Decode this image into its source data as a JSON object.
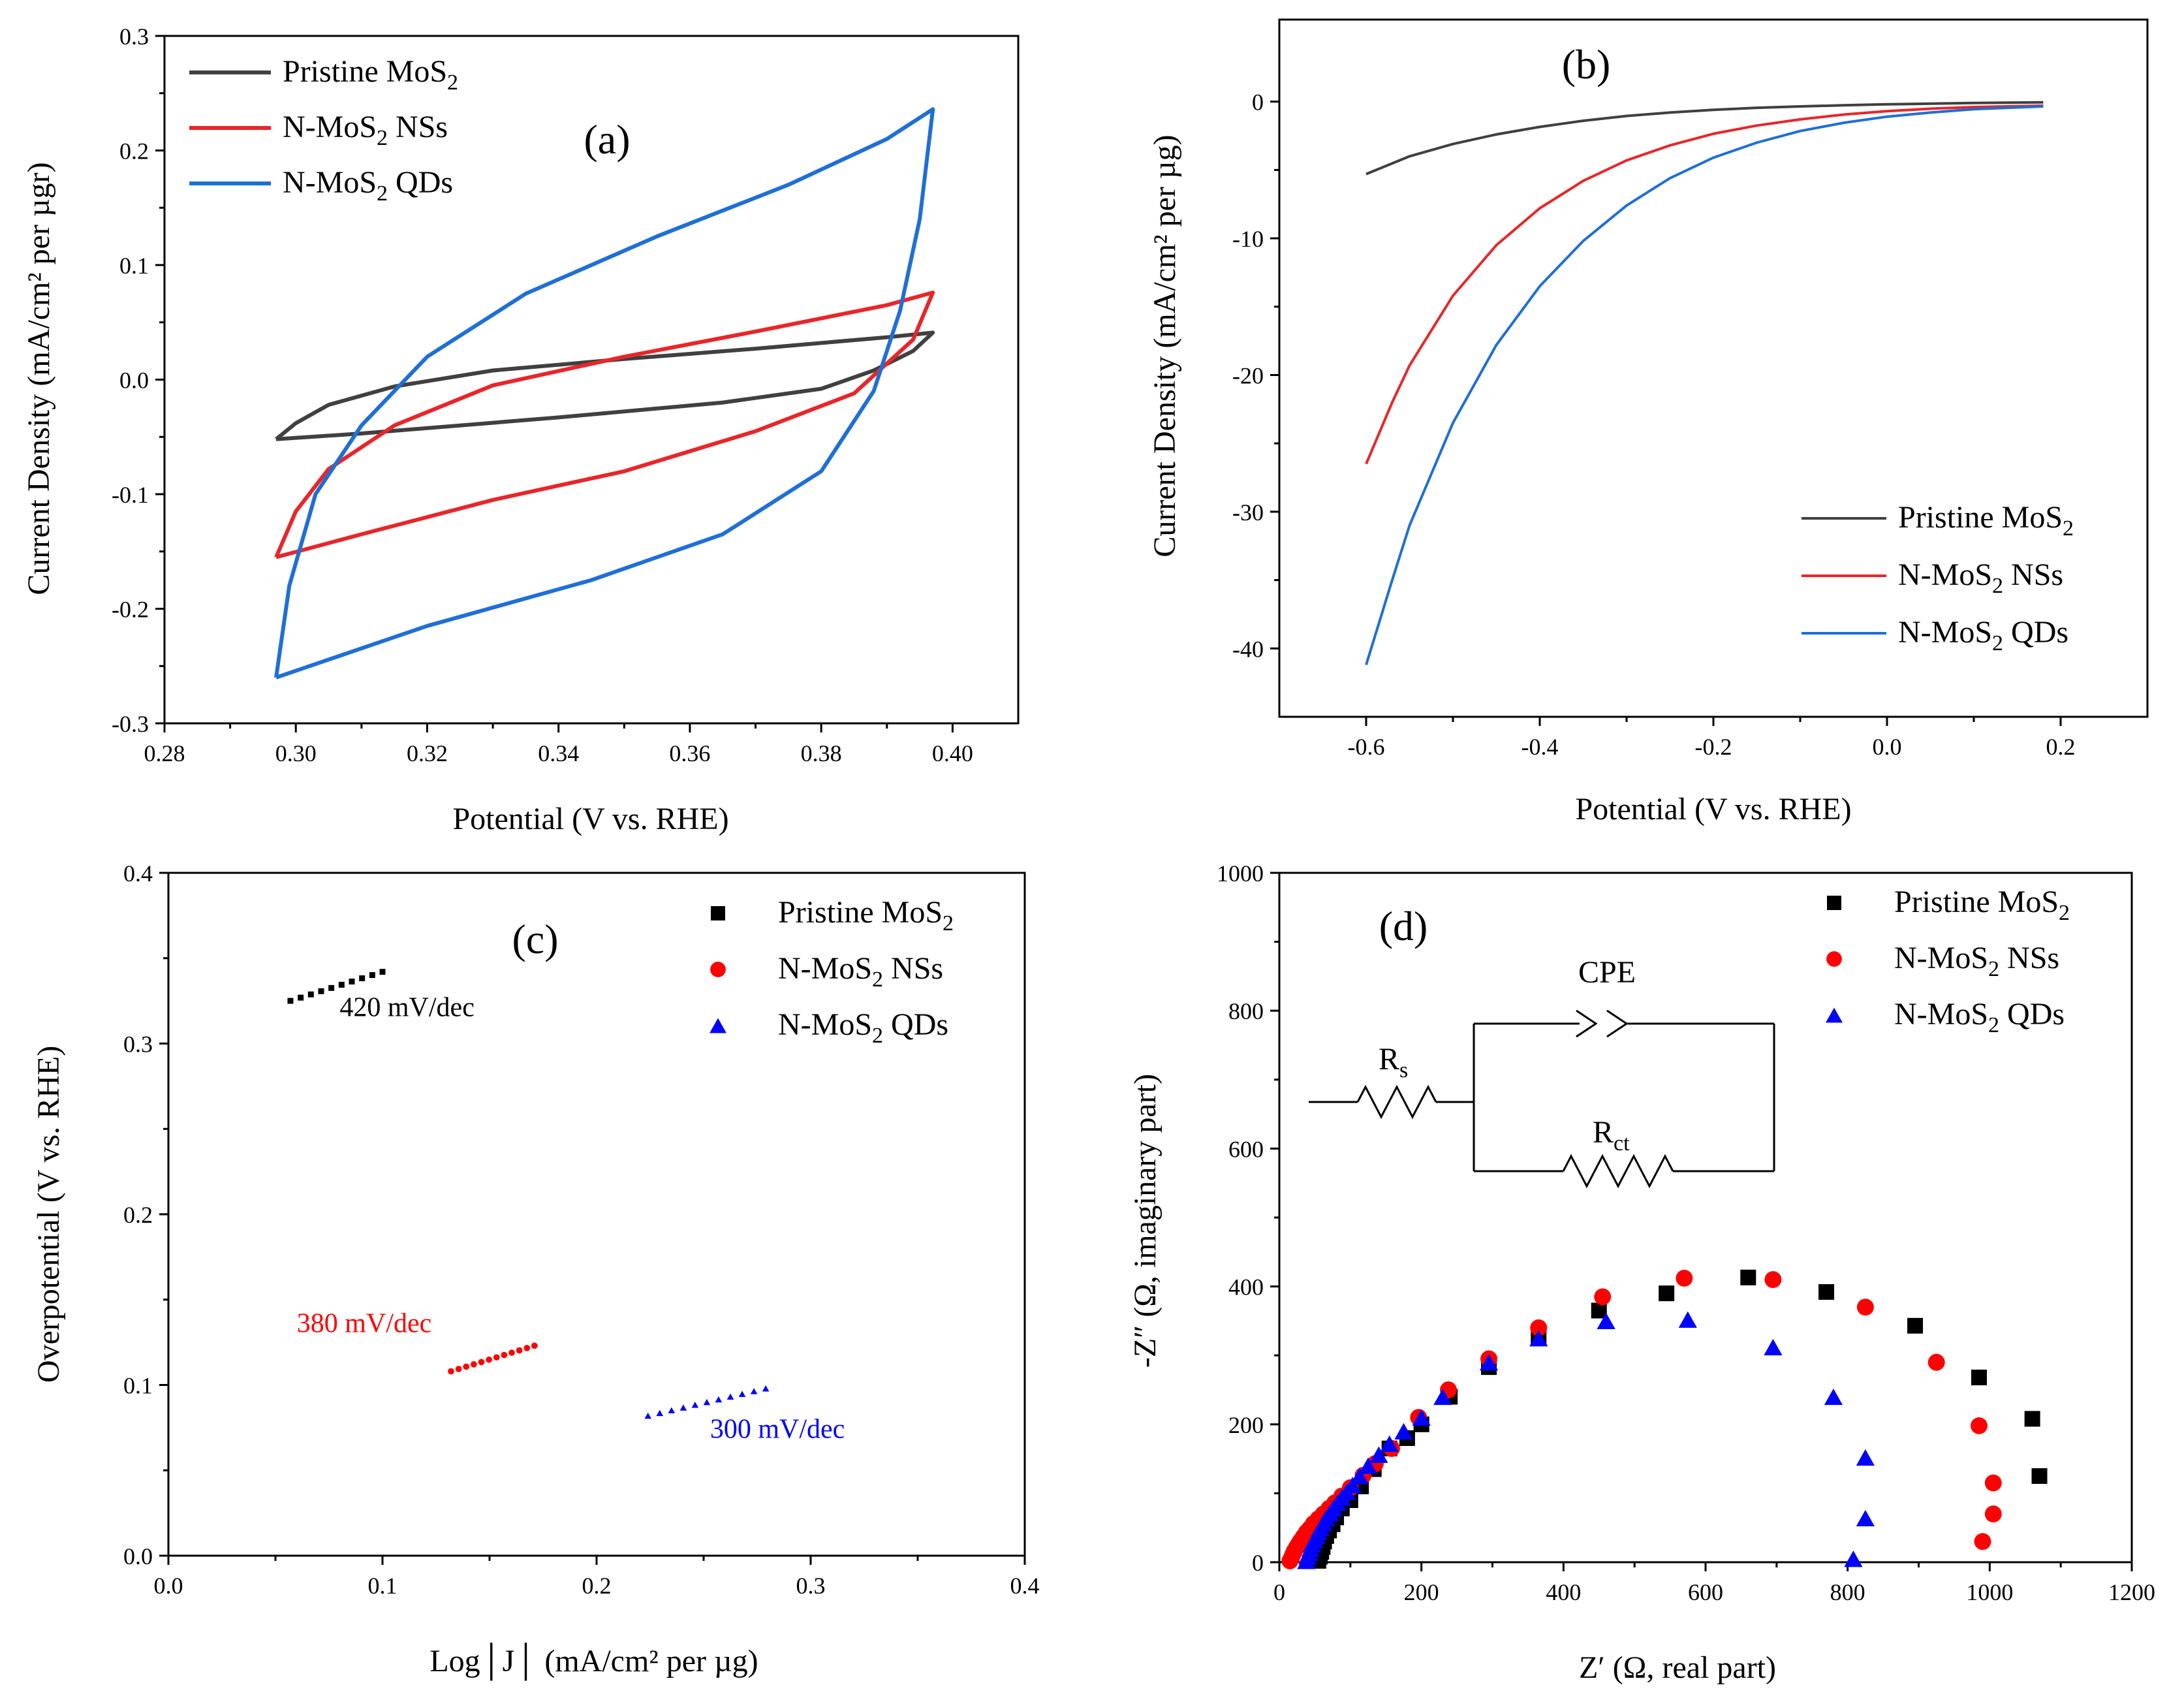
{
  "colors": {
    "pristine": "#404040",
    "nss": "#e8262a",
    "qds": "#1f6fd6",
    "black": "#000000",
    "red": "#ff0000",
    "blue": "#0000ff"
  },
  "chart_data": [
    {
      "id": "a",
      "type": "line",
      "panel_label": "(a)",
      "xlabel": "Potential (V vs. RHE)",
      "ylabel": "Current Density (mA/cm² per µgr)",
      "xlim": [
        0.28,
        0.41
      ],
      "ylim": [
        -0.3,
        0.3
      ],
      "xticks": [
        0.28,
        0.3,
        0.32,
        0.34,
        0.36,
        0.38,
        0.4
      ],
      "xtick_labels": [
        "0.28",
        "0.30",
        "0.32",
        "0.34",
        "0.36",
        "0.38",
        "0.40"
      ],
      "yticks": [
        -0.3,
        -0.2,
        -0.1,
        0.0,
        0.1,
        0.2,
        0.3
      ],
      "ytick_labels": [
        "-0.3",
        "-0.2",
        "-0.1",
        "0.0",
        "0.1",
        "0.2",
        "0.3"
      ],
      "legend": [
        {
          "pre": "Pristine MoS",
          "sub": "2",
          "post": "",
          "color": "pristine"
        },
        {
          "pre": "N-MoS",
          "sub": "2",
          "post": " NSs",
          "color": "nss"
        },
        {
          "pre": "N-MoS",
          "sub": "2",
          "post": " QDs",
          "color": "qds"
        }
      ],
      "series": [
        {
          "name": "Pristine MoS2",
          "color": "pristine",
          "x": [
            0.297,
            0.3,
            0.305,
            0.315,
            0.33,
            0.35,
            0.37,
            0.39,
            0.397,
            0.397,
            0.394,
            0.388,
            0.38,
            0.365,
            0.34,
            0.31,
            0.297
          ],
          "y": [
            -0.052,
            -0.038,
            -0.022,
            -0.006,
            0.008,
            0.018,
            0.027,
            0.037,
            0.041,
            0.041,
            0.025,
            0.008,
            -0.008,
            -0.02,
            -0.033,
            -0.047,
            -0.052
          ]
        },
        {
          "name": "N-MoS2 NSs",
          "color": "nss",
          "x": [
            0.297,
            0.3,
            0.305,
            0.315,
            0.33,
            0.35,
            0.37,
            0.39,
            0.397,
            0.397,
            0.394,
            0.385,
            0.37,
            0.35,
            0.33,
            0.31,
            0.297
          ],
          "y": [
            -0.155,
            -0.115,
            -0.078,
            -0.04,
            -0.005,
            0.02,
            0.042,
            0.065,
            0.076,
            0.076,
            0.035,
            -0.012,
            -0.045,
            -0.08,
            -0.105,
            -0.135,
            -0.155
          ]
        },
        {
          "name": "N-MoS2 QDs",
          "color": "qds",
          "x": [
            0.297,
            0.299,
            0.303,
            0.31,
            0.32,
            0.335,
            0.355,
            0.375,
            0.39,
            0.397,
            0.397,
            0.395,
            0.392,
            0.388,
            0.38,
            0.365,
            0.345,
            0.32,
            0.297
          ],
          "y": [
            -0.26,
            -0.18,
            -0.1,
            -0.04,
            0.02,
            0.075,
            0.125,
            0.17,
            0.21,
            0.236,
            0.236,
            0.14,
            0.06,
            -0.01,
            -0.08,
            -0.135,
            -0.175,
            -0.215,
            -0.26
          ]
        }
      ]
    },
    {
      "id": "b",
      "type": "line",
      "panel_label": "(b)",
      "xlabel": "Potential (V vs. RHE)",
      "ylabel": "Current Density (mA/cm² per µg)",
      "xlim": [
        -0.7,
        0.3
      ],
      "ylim": [
        -45,
        6
      ],
      "xticks": [
        -0.6,
        -0.4,
        -0.2,
        0.0,
        0.2
      ],
      "xtick_labels": [
        "-0.6",
        "-0.4",
        "-0.2",
        "0.0",
        "0.2"
      ],
      "yticks": [
        -40,
        -30,
        -20,
        -10,
        0
      ],
      "ytick_labels": [
        "-40",
        "-30",
        "-20",
        "-10",
        "0"
      ],
      "legend": [
        {
          "pre": "Pristine MoS",
          "sub": "2",
          "post": "",
          "color": "pristine"
        },
        {
          "pre": "N-MoS",
          "sub": "2",
          "post": " NSs",
          "color": "nss"
        },
        {
          "pre": "N-MoS",
          "sub": "2",
          "post": " QDs",
          "color": "qds"
        }
      ],
      "series": [
        {
          "name": "Pristine MoS2",
          "color": "pristine",
          "x": [
            -0.6,
            -0.55,
            -0.5,
            -0.45,
            -0.4,
            -0.35,
            -0.3,
            -0.25,
            -0.2,
            -0.15,
            -0.1,
            -0.05,
            0.0,
            0.05,
            0.1,
            0.18
          ],
          "y": [
            -5.3,
            -4.0,
            -3.1,
            -2.4,
            -1.85,
            -1.4,
            -1.05,
            -0.8,
            -0.6,
            -0.45,
            -0.35,
            -0.27,
            -0.2,
            -0.15,
            -0.1,
            -0.05
          ]
        },
        {
          "name": "N-MoS2 NSs",
          "color": "nss",
          "x": [
            -0.6,
            -0.57,
            -0.55,
            -0.5,
            -0.45,
            -0.4,
            -0.35,
            -0.3,
            -0.25,
            -0.2,
            -0.15,
            -0.1,
            -0.05,
            0.0,
            0.05,
            0.1,
            0.18
          ],
          "y": [
            -26.5,
            -22.0,
            -19.3,
            -14.2,
            -10.5,
            -7.8,
            -5.8,
            -4.3,
            -3.2,
            -2.35,
            -1.75,
            -1.3,
            -0.95,
            -0.7,
            -0.52,
            -0.4,
            -0.3
          ]
        },
        {
          "name": "N-MoS2 QDs",
          "color": "qds",
          "x": [
            -0.6,
            -0.57,
            -0.55,
            -0.5,
            -0.45,
            -0.4,
            -0.35,
            -0.3,
            -0.25,
            -0.2,
            -0.15,
            -0.1,
            -0.05,
            0.0,
            0.05,
            0.1,
            0.18
          ],
          "y": [
            -41.2,
            -35.0,
            -31.0,
            -23.5,
            -17.8,
            -13.5,
            -10.2,
            -7.6,
            -5.6,
            -4.1,
            -3.0,
            -2.15,
            -1.55,
            -1.1,
            -0.8,
            -0.55,
            -0.35
          ]
        }
      ]
    },
    {
      "id": "c",
      "type": "scatter",
      "panel_label": "(c)",
      "xlabel": "Log│J│ (mA/cm² per µg)",
      "ylabel": "Overpotential (V vs. RHE)",
      "xlim": [
        0.0,
        0.4
      ],
      "ylim": [
        0.0,
        0.4
      ],
      "xticks": [
        0.0,
        0.1,
        0.2,
        0.3,
        0.4
      ],
      "xtick_labels": [
        "0.0",
        "0.1",
        "0.2",
        "0.3",
        "0.4"
      ],
      "yticks": [
        0.0,
        0.1,
        0.2,
        0.3,
        0.4
      ],
      "ytick_labels": [
        "0.0",
        "0.1",
        "0.2",
        "0.3",
        "0.4"
      ],
      "legend": [
        {
          "pre": "Pristine MoS",
          "sub": "2",
          "post": "",
          "color": "black",
          "marker": "square"
        },
        {
          "pre": "N-MoS",
          "sub": "2",
          "post": " NSs",
          "color": "red",
          "marker": "circle"
        },
        {
          "pre": "N-MoS",
          "sub": "2",
          "post": " QDs",
          "color": "blue",
          "marker": "triangle"
        }
      ],
      "series": [
        {
          "name": "Pristine MoS2",
          "color": "black",
          "marker": "square",
          "x_start": 0.057,
          "x_end": 0.1,
          "y_start": 0.325,
          "y_end": 0.342,
          "n": 10
        },
        {
          "name": "N-MoS2 NSs",
          "color": "red",
          "marker": "circle",
          "x_start": 0.132,
          "x_end": 0.171,
          "y_start": 0.108,
          "y_end": 0.123,
          "n": 12
        },
        {
          "name": "N-MoS2 QDs",
          "color": "blue",
          "marker": "triangle",
          "x_start": 0.224,
          "x_end": 0.279,
          "y_start": 0.082,
          "y_end": 0.098,
          "n": 11
        }
      ],
      "annotations": [
        {
          "text": "420 mV/dec",
          "color": "black",
          "x": 0.08,
          "y": 0.316
        },
        {
          "text": "380  mV/dec",
          "color": "red",
          "x": 0.06,
          "y": 0.131
        },
        {
          "text": "300 mV/dec",
          "color": "blue",
          "x": 0.253,
          "y": 0.069
        }
      ]
    },
    {
      "id": "d",
      "type": "scatter",
      "panel_label": "(d)",
      "xlabel": "Z′ (Ω, real part)",
      "ylabel": "-Z″ (Ω, imaginary part)",
      "xlim": [
        0,
        1200
      ],
      "ylim": [
        0,
        1000
      ],
      "xticks": [
        0,
        200,
        400,
        600,
        800,
        1000,
        1200
      ],
      "xtick_labels": [
        "0",
        "200",
        "400",
        "600",
        "800",
        "1000",
        "1200"
      ],
      "yticks": [
        0,
        200,
        400,
        600,
        800,
        1000
      ],
      "ytick_labels": [
        "0",
        "200",
        "400",
        "600",
        "800",
        "1000"
      ],
      "legend": [
        {
          "pre": "Pristine MoS",
          "sub": "2",
          "post": "",
          "color": "black",
          "marker": "square"
        },
        {
          "pre": "N-MoS",
          "sub": "2",
          "post": " NSs",
          "color": "red",
          "marker": "circle"
        },
        {
          "pre": "N-MoS",
          "sub": "2",
          "post": " QDs",
          "color": "blue",
          "marker": "triangle"
        }
      ],
      "circuit": {
        "rs": "R",
        "rs_sub": "s",
        "cpe": "CPE",
        "rct": "R",
        "rct_sub": "ct"
      },
      "series": [
        {
          "name": "Pristine MoS2",
          "color": "black",
          "marker": "square",
          "x": [
            55,
            57,
            59,
            61,
            63,
            66,
            70,
            75,
            80,
            88,
            100,
            115,
            133,
            155,
            180,
            200,
            240,
            295,
            365,
            450,
            545,
            660,
            770,
            895,
            985,
            1060,
            1070
          ],
          "y": [
            2,
            8,
            15,
            22,
            30,
            38,
            46,
            55,
            65,
            78,
            90,
            110,
            135,
            165,
            180,
            200,
            240,
            283,
            325,
            365,
            390,
            413,
            392,
            343,
            268,
            208,
            125
          ]
        },
        {
          "name": "N-MoS2 NSs",
          "color": "red",
          "marker": "circle",
          "x": [
            15,
            17,
            19,
            21,
            24,
            27,
            30,
            34,
            38,
            43,
            48,
            55,
            62,
            70,
            78,
            88,
            100,
            118,
            135,
            158,
            196,
            238,
            295,
            365,
            455,
            570,
            695,
            825,
            925,
            985,
            1005,
            1005,
            990
          ],
          "y": [
            2,
            6,
            11,
            16,
            21,
            26,
            31,
            37,
            43,
            49,
            56,
            63,
            70,
            78,
            86,
            96,
            108,
            126,
            143,
            165,
            210,
            250,
            295,
            340,
            385,
            412,
            410,
            370,
            290,
            198,
            115,
            70,
            30
          ]
        },
        {
          "name": "N-MoS2 QDs",
          "color": "blue",
          "marker": "triangle",
          "x": [
            38,
            40,
            42,
            44,
            46,
            49,
            52,
            55,
            58,
            62,
            66,
            71,
            76,
            82,
            88,
            95,
            103,
            113,
            125,
            140,
            155,
            175,
            200,
            230,
            295,
            365,
            460,
            575,
            695,
            780,
            825,
            825,
            808
          ],
          "y": [
            2,
            8,
            14,
            20,
            26,
            32,
            38,
            44,
            50,
            57,
            64,
            71,
            78,
            86,
            94,
            102,
            112,
            125,
            140,
            156,
            172,
            190,
            210,
            240,
            290,
            325,
            350,
            352,
            312,
            240,
            152,
            64,
            5
          ]
        }
      ]
    }
  ]
}
